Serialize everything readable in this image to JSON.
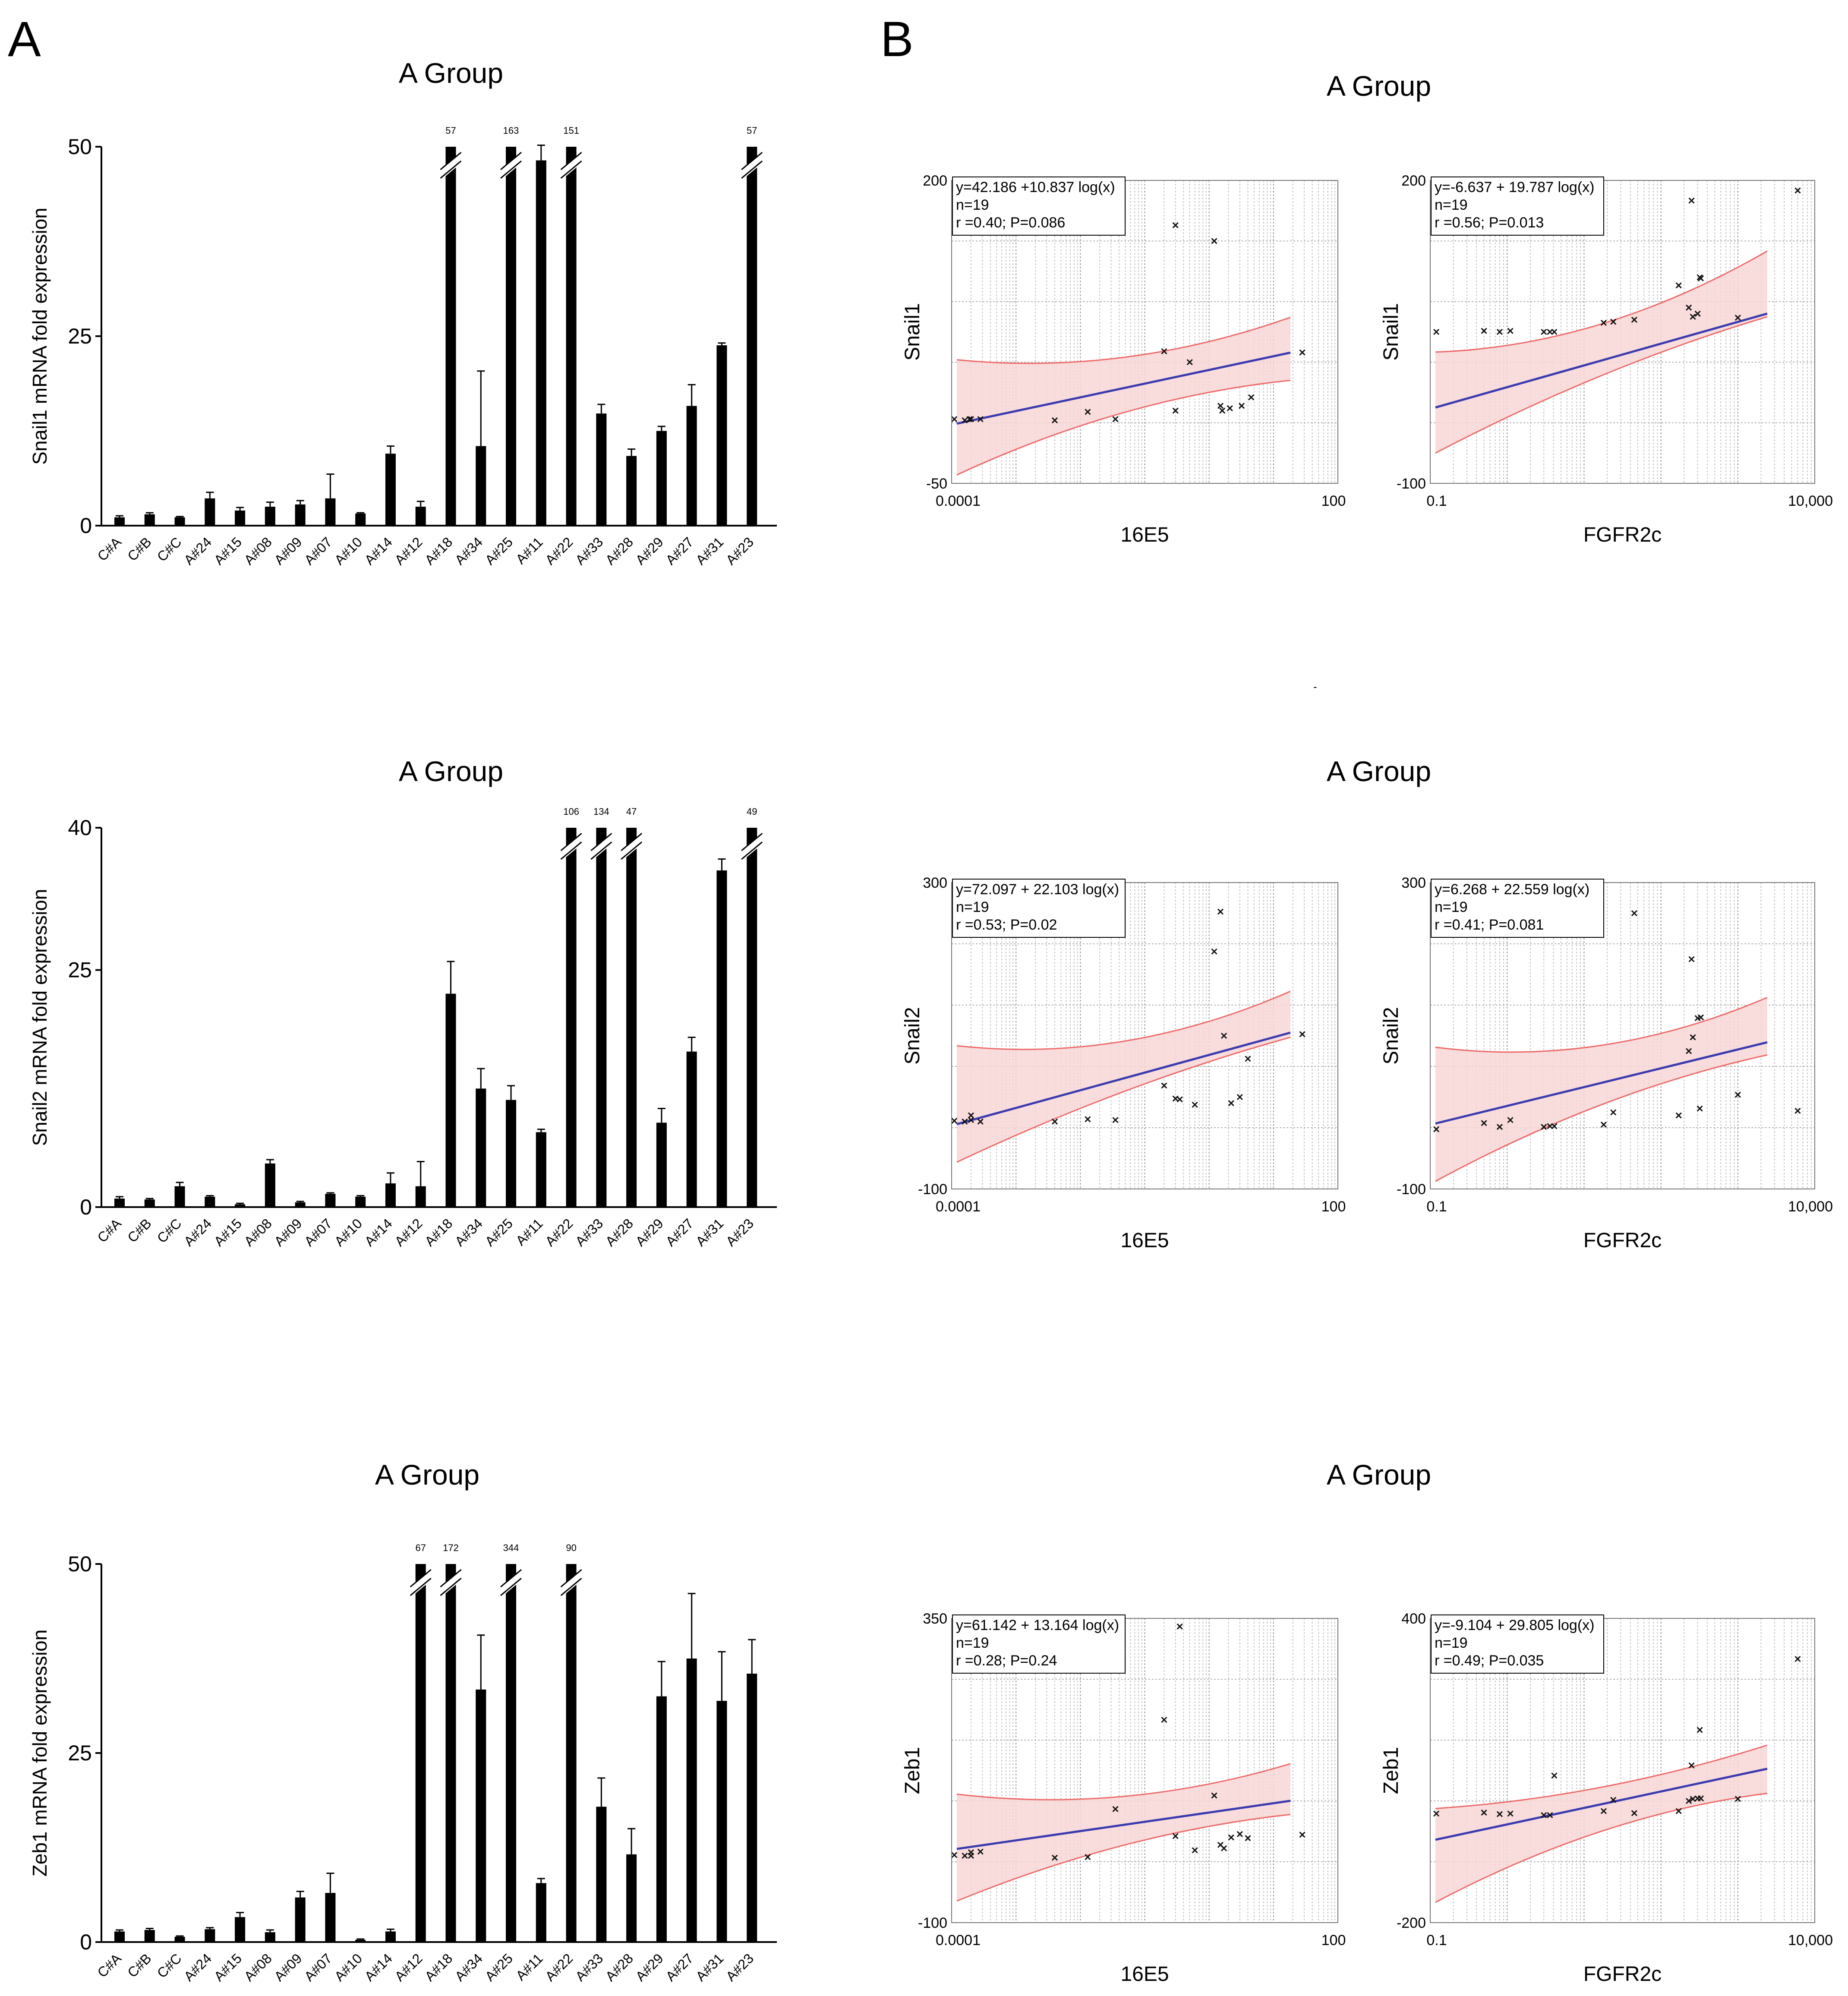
{
  "panels": {
    "a": "A",
    "b": "B"
  },
  "bar_charts": [
    {
      "type": "bar",
      "title": "A Group",
      "ylabel": "Snail1 mRNA fold expression",
      "ylim": [
        0,
        50
      ],
      "yticks": [
        "0",
        "25",
        "50"
      ],
      "categories": [
        "C#A",
        "C#B",
        "C#C",
        "A#24",
        "A#15",
        "A#08",
        "A#09",
        "A#07",
        "A#10",
        "A#14",
        "A#12",
        "A#18",
        "A#34",
        "A#25",
        "A#11",
        "A#22",
        "A#33",
        "A#28",
        "A#29",
        "A#27",
        "A#31",
        "A#23"
      ],
      "values": [
        1.1,
        1.5,
        1.1,
        3.6,
        2.0,
        2.5,
        2.8,
        3.6,
        1.6,
        9.5,
        2.5,
        50,
        10.5,
        50,
        48.2,
        50,
        14.8,
        9.2,
        12.5,
        15.8,
        23.8,
        50
      ],
      "errors": [
        0.2,
        0.2,
        0.1,
        0.8,
        0.4,
        0.6,
        0.5,
        3.2,
        0.1,
        1.0,
        0.7,
        0,
        9.9,
        0,
        2.0,
        0,
        1.2,
        0.9,
        0.6,
        2.8,
        0.3,
        0
      ],
      "breaks": [
        false,
        false,
        false,
        false,
        false,
        false,
        false,
        false,
        false,
        false,
        false,
        true,
        false,
        true,
        false,
        true,
        false,
        false,
        false,
        false,
        false,
        true
      ],
      "break_labels": [
        "",
        "",
        "",
        "",
        "",
        "",
        "",
        "",
        "",
        "",
        "",
        "57",
        "",
        "163",
        "",
        "151",
        "",
        "",
        "",
        "",
        "",
        "57"
      ]
    },
    {
      "type": "bar",
      "title": "A Group",
      "ylabel": "Snail2 mRNA fold expression",
      "ylim": [
        0,
        40
      ],
      "yticks": [
        "0",
        "25",
        "40"
      ],
      "categories": [
        "C#A",
        "C#B",
        "C#C",
        "A#24",
        "A#15",
        "A#08",
        "A#09",
        "A#07",
        "A#10",
        "A#14",
        "A#12",
        "A#18",
        "A#34",
        "A#25",
        "A#11",
        "A#22",
        "A#33",
        "A#28",
        "A#29",
        "A#27",
        "A#31",
        "A#23"
      ],
      "values": [
        0.9,
        0.8,
        2.2,
        1.1,
        0.3,
        4.6,
        0.5,
        1.4,
        1.1,
        2.5,
        2.2,
        22.5,
        12.5,
        11.3,
        7.9,
        40,
        40,
        40,
        8.9,
        16.4,
        35.5,
        40
      ],
      "errors": [
        0.2,
        0.1,
        0.4,
        0.1,
        0.1,
        0.4,
        0.1,
        0.1,
        0.1,
        1.1,
        2.6,
        3.4,
        2.1,
        1.5,
        0.3,
        0,
        0,
        0,
        1.5,
        1.5,
        1.2,
        0
      ],
      "breaks": [
        false,
        false,
        false,
        false,
        false,
        false,
        false,
        false,
        false,
        false,
        false,
        false,
        false,
        false,
        false,
        true,
        true,
        true,
        false,
        false,
        false,
        true
      ],
      "break_labels": [
        "",
        "",
        "",
        "",
        "",
        "",
        "",
        "",
        "",
        "",
        "",
        "",
        "",
        "",
        "",
        "106",
        "134",
        "47",
        "",
        "",
        "",
        "49"
      ]
    },
    {
      "type": "bar",
      "title": "A Group",
      "ylabel": "Zeb1 mRNA fold expression",
      "ylim": [
        0,
        50
      ],
      "yticks": [
        "0",
        "25",
        "50"
      ],
      "categories": [
        "C#A",
        "C#B",
        "C#C",
        "A#24",
        "A#15",
        "A#08",
        "A#09",
        "A#07",
        "A#10",
        "A#14",
        "A#12",
        "A#18",
        "A#34",
        "A#25",
        "A#11",
        "A#22",
        "A#33",
        "A#28",
        "A#29",
        "A#27",
        "A#31",
        "A#23"
      ],
      "values": [
        1.4,
        1.6,
        0.7,
        1.7,
        3.3,
        1.3,
        5.9,
        6.5,
        0.3,
        1.4,
        50,
        50,
        33.4,
        50,
        7.8,
        50,
        17.9,
        11.6,
        32.5,
        37.5,
        31.9,
        35.5
      ],
      "errors": [
        0.2,
        0.2,
        0.1,
        0.2,
        0.6,
        0.3,
        0.8,
        2.6,
        0.1,
        0.3,
        0,
        0,
        7.2,
        0,
        0.6,
        0,
        3.8,
        3.4,
        4.6,
        8.6,
        6.5,
        4.5
      ],
      "breaks": [
        false,
        false,
        false,
        false,
        false,
        false,
        false,
        false,
        false,
        false,
        true,
        true,
        false,
        true,
        false,
        true,
        false,
        false,
        false,
        false,
        false,
        false
      ],
      "break_labels": [
        "",
        "",
        "",
        "",
        "",
        "",
        "",
        "",
        "",
        "",
        "67",
        "172",
        "",
        "344",
        "",
        "90",
        "",
        "",
        "",
        "",
        "",
        ""
      ]
    }
  ],
  "scatter_titles": [
    "A Group",
    "A Group",
    "A Group"
  ],
  "dash_mark": "-",
  "scatter_charts": [
    {
      "type": "scatter",
      "xlabel": "16E5",
      "ylabel": "Snail1",
      "xscale": "log",
      "xlim": [
        0.0001,
        100
      ],
      "ylim": [
        -50,
        200
      ],
      "x_tick_labels": [
        "0.0001",
        "100"
      ],
      "y_tick_labels": [
        "-50",
        "200"
      ],
      "stats": [
        "y=42.186 +10.837 log(x)",
        "n=19",
        "r =0.40; P=0.086"
      ],
      "fit": {
        "intercept": 42.186,
        "slope": 10.837
      },
      "band": {
        "lower_start": -43,
        "lower_end": 35,
        "upper_start": 52,
        "upper_end": 87
      },
      "x": [
        0.00011,
        0.00016,
        0.00019,
        0.0002,
        0.00028,
        0.004,
        0.013,
        0.035,
        0.2,
        0.3,
        0.3,
        0.5,
        1.2,
        1.5,
        1.6,
        2.1,
        3.2,
        4.5,
        28
      ],
      "y": [
        3,
        2,
        3,
        3,
        3,
        2,
        9,
        3,
        59,
        10,
        163,
        50,
        150,
        14,
        10,
        12,
        14,
        21,
        58
      ]
    },
    {
      "type": "scatter",
      "xlabel": "FGFR2c",
      "ylabel": "Snail1",
      "xscale": "log",
      "xlim": [
        0.1,
        10000
      ],
      "ylim": [
        -100,
        200
      ],
      "x_tick_labels": [
        "0.1",
        "10,000"
      ],
      "y_tick_labels": [
        "-100",
        "200"
      ],
      "stats": [
        "y=-6.637 + 19.787 log(x)",
        "n=19",
        "r =0.56; P=0.013"
      ],
      "fit": {
        "intercept": -6.637,
        "slope": 19.787
      },
      "band": {
        "lower_start": -70,
        "lower_end": 65,
        "upper_start": 30,
        "upper_end": 130
      },
      "x": [
        0.12,
        0.5,
        0.8,
        1.1,
        3.0,
        3.6,
        4.1,
        18,
        24,
        45,
        170,
        230,
        250,
        260,
        300,
        320,
        330,
        1000,
        6000
      ],
      "y": [
        50,
        51,
        50,
        51,
        50,
        50,
        50,
        59,
        60,
        62,
        96,
        74,
        180,
        65,
        68,
        104,
        103,
        64,
        190
      ]
    },
    {
      "type": "scatter",
      "xlabel": "16E5",
      "ylabel": "Snail2",
      "xscale": "log",
      "xlim": [
        0.0001,
        100
      ],
      "ylim": [
        -100,
        300
      ],
      "x_tick_labels": [
        "0.0001",
        "100"
      ],
      "y_tick_labels": [
        "-100",
        "300"
      ],
      "stats": [
        "y=72.097 + 22.103 log(x)",
        "n=19",
        "r =0.53; P=0.02"
      ],
      "fit": {
        "intercept": 72.097,
        "slope": 22.103
      },
      "band": {
        "lower_start": -65,
        "lower_end": 98,
        "upper_start": 87,
        "upper_end": 158
      },
      "x": [
        0.00011,
        0.00016,
        0.0002,
        0.0002,
        0.00028,
        0.004,
        0.013,
        0.035,
        0.2,
        0.3,
        0.35,
        0.6,
        1.2,
        1.5,
        1.7,
        2.2,
        3.0,
        4.0,
        28
      ],
      "y": [
        -11,
        -12,
        -4,
        -10,
        -12,
        -12,
        -9,
        -10,
        35,
        18,
        17,
        10,
        210,
        262,
        100,
        12,
        20,
        70,
        102
      ]
    },
    {
      "type": "scatter",
      "xlabel": "FGFR2c",
      "ylabel": "Snail2",
      "xscale": "log",
      "xlim": [
        0.1,
        10000
      ],
      "ylim": [
        -100,
        300
      ],
      "x_tick_labels": [
        "0.1",
        "10,000"
      ],
      "y_tick_labels": [
        "-100",
        "300"
      ],
      "stats": [
        "y=6.268 + 22.559 log(x)",
        "n=19",
        "r =0.41; P=0.081"
      ],
      "fit": {
        "intercept": 6.268,
        "slope": 22.559
      },
      "band": {
        "lower_start": -90,
        "lower_end": 75,
        "upper_start": 85,
        "upper_end": 150
      },
      "x": [
        0.12,
        0.5,
        0.8,
        1.1,
        3.0,
        3.6,
        4.1,
        18,
        24,
        45,
        170,
        230,
        250,
        260,
        300,
        320,
        330,
        1000,
        6000
      ],
      "y": [
        -22,
        -14,
        -19,
        -10,
        -19,
        -18,
        -18,
        -16,
        0,
        260,
        -4,
        80,
        200,
        98,
        123,
        5,
        124,
        23,
        2
      ]
    },
    {
      "type": "scatter",
      "xlabel": "16E5",
      "ylabel": "Zeb1",
      "xscale": "log",
      "xlim": [
        0.0001,
        100
      ],
      "ylim": [
        -100,
        350
      ],
      "x_tick_labels": [
        "0.0001",
        "100"
      ],
      "y_tick_labels": [
        "-100",
        "350"
      ],
      "stats": [
        "y=61.142 + 13.164 log(x)",
        "n=19",
        "r =0.28; P=0.24"
      ],
      "fit": {
        "intercept": 61.142,
        "slope": 13.164
      },
      "band": {
        "lower_start": -68,
        "lower_end": 60,
        "upper_start": 90,
        "upper_end": 135
      },
      "x": [
        0.00011,
        0.00016,
        0.0002,
        0.0002,
        0.00028,
        0.004,
        0.013,
        0.035,
        0.2,
        0.3,
        0.35,
        0.6,
        1.2,
        1.5,
        1.7,
        2.2,
        3.0,
        4.0,
        28
      ],
      "y": [
        0,
        -1,
        4,
        -1,
        5,
        -4,
        -3,
        68,
        200,
        28,
        338,
        7,
        88,
        15,
        10,
        26,
        31,
        25,
        30
      ]
    },
    {
      "type": "scatter",
      "xlabel": "FGFR2c",
      "ylabel": "Zeb1",
      "xscale": "log",
      "xlim": [
        0.1,
        10000
      ],
      "ylim": [
        -200,
        400
      ],
      "x_tick_labels": [
        "0.1",
        "10,000"
      ],
      "y_tick_labels": [
        "-200",
        "400"
      ],
      "stats": [
        "y=-9.104 + 29.805 log(x)",
        "n=19",
        "r =0.49; P=0.035"
      ],
      "fit": {
        "intercept": -9.104,
        "slope": 29.805
      },
      "band": {
        "lower_start": -160,
        "lower_end": 55,
        "upper_start": 25,
        "upper_end": 150
      },
      "x": [
        0.12,
        0.5,
        0.8,
        1.1,
        3.0,
        3.6,
        4.1,
        18,
        24,
        45,
        170,
        230,
        250,
        260,
        300,
        320,
        330,
        1000,
        6000
      ],
      "y": [
        15,
        17,
        14,
        15,
        12,
        12,
        90,
        20,
        42,
        16,
        20,
        40,
        110,
        44,
        45,
        180,
        45,
        44,
        320
      ]
    }
  ]
}
